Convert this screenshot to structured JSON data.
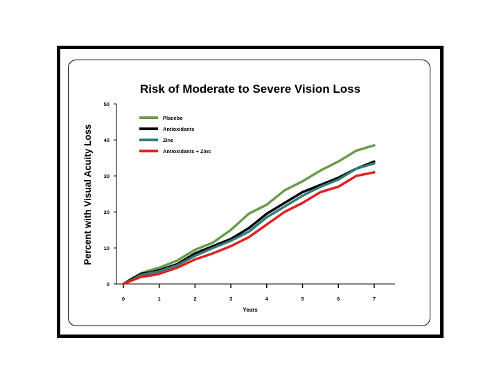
{
  "chart_data": {
    "type": "line",
    "title": "Risk of Moderate to Severe Vision Loss",
    "xlabel": "Years",
    "ylabel": "Percent with Visual Acuity Loss",
    "xlim": [
      0,
      7.5
    ],
    "ylim": [
      0,
      50
    ],
    "x_ticks": [
      "0",
      "1",
      "2",
      "3",
      "4",
      "5",
      "6",
      "7"
    ],
    "y_ticks": [
      "0",
      "10",
      "20",
      "30",
      "40",
      "50"
    ],
    "legend_position": "top-left",
    "series": [
      {
        "name": "Placebo",
        "color": "#6a9a4a",
        "x": [
          0,
          0.25,
          0.5,
          0.75,
          1,
          1.5,
          2,
          2.5,
          3,
          3.5,
          4,
          4.5,
          5,
          5.5,
          6,
          6.5,
          7
        ],
        "y": [
          0,
          1.5,
          3,
          3.8,
          4.5,
          6.5,
          9.5,
          11.5,
          15,
          19.5,
          22,
          26,
          28.5,
          31.5,
          34,
          37,
          38.5
        ]
      },
      {
        "name": "Antioxidants",
        "color": "#000000",
        "x": [
          0,
          0.25,
          0.5,
          0.75,
          1,
          1.5,
          2,
          2.5,
          3,
          3.5,
          4,
          4.5,
          5,
          5.5,
          6,
          6.5,
          7
        ],
        "y": [
          0,
          1.5,
          2.8,
          3.2,
          3.8,
          5.5,
          8.5,
          10.5,
          12.5,
          15.5,
          19.5,
          22.5,
          25.5,
          27.5,
          29.5,
          32,
          34
        ]
      },
      {
        "name": "Zinc",
        "color": "#2e7d7a",
        "x": [
          0,
          0.25,
          0.5,
          0.75,
          1,
          1.5,
          2,
          2.5,
          3,
          3.5,
          4,
          4.5,
          5,
          5.5,
          6,
          6.5,
          7
        ],
        "y": [
          0,
          1.2,
          2.5,
          3,
          3.5,
          5.2,
          7.8,
          10,
          12,
          14.5,
          18.5,
          21.5,
          24.5,
          27,
          29,
          32,
          33.5
        ]
      },
      {
        "name": "Antioxidants + Zinc",
        "color": "#e02020",
        "x": [
          0,
          0.25,
          0.5,
          0.75,
          1,
          1.5,
          2,
          2.5,
          3,
          3.5,
          4,
          4.5,
          5,
          5.5,
          6,
          6.5,
          7
        ],
        "y": [
          0,
          1,
          2,
          2.3,
          2.8,
          4.5,
          6.8,
          8.5,
          10.5,
          13,
          16.5,
          20,
          22.5,
          25.5,
          27,
          30,
          31
        ]
      }
    ]
  }
}
